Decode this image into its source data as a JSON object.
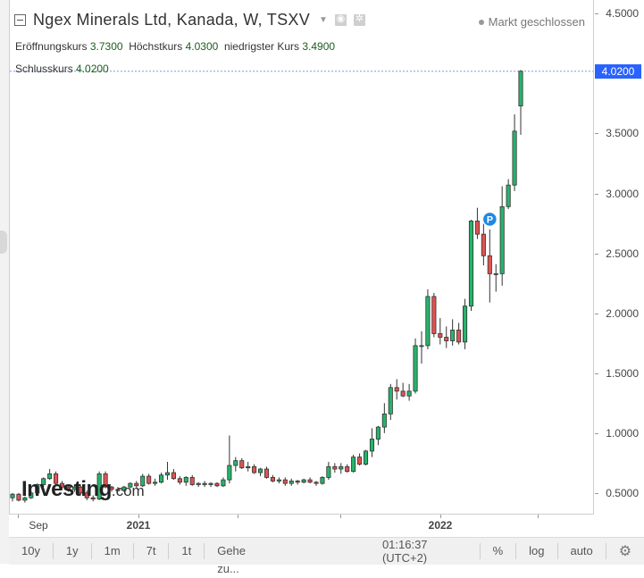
{
  "header": {
    "title": "Ngex Minerals Ltd, Kanada, W, TSXV",
    "market_status": "Markt geschlossen"
  },
  "ohlc": {
    "open_label": "Eröffnungskurs",
    "open_value": "3.7300",
    "high_label": "Höchstkurs",
    "high_value": "4.0300",
    "low_label": "niedrigster Kurs",
    "low_value": "3.4900",
    "close_label": "Schlusskurs",
    "close_value": "4.0200"
  },
  "current_price_tag": "4.0200",
  "logo": {
    "main": "Investing",
    "suffix": ".com"
  },
  "marker_label": "P",
  "toolbar": {
    "periods": [
      "10y",
      "1y",
      "1m",
      "7t",
      "1t"
    ],
    "goto": "Gehe zu...",
    "time": "01:16:37",
    "timezone": "(UTC+2)",
    "percent": "%",
    "log": "log",
    "auto": "auto"
  },
  "colors": {
    "up": "#26b36b",
    "down": "#e05252",
    "accent": "#2962ff"
  },
  "chart_data": {
    "type": "candlestick",
    "title": "Ngex Minerals Ltd, Kanada, W, TSXV",
    "x_tick_labels": [
      "Sep",
      "2021",
      "2022"
    ],
    "y_ticks": [
      0.5,
      1.0,
      1.5,
      2.0,
      2.5,
      3.0,
      3.5,
      4.0,
      4.5
    ],
    "ylim": [
      0.32,
      4.54
    ],
    "grid": false,
    "candles": [
      {
        "o": 0.46,
        "h": 0.5,
        "l": 0.43,
        "c": 0.49
      },
      {
        "o": 0.49,
        "h": 0.5,
        "l": 0.43,
        "c": 0.44
      },
      {
        "o": 0.44,
        "h": 0.47,
        "l": 0.42,
        "c": 0.46
      },
      {
        "o": 0.46,
        "h": 0.52,
        "l": 0.45,
        "c": 0.5
      },
      {
        "o": 0.5,
        "h": 0.58,
        "l": 0.49,
        "c": 0.57
      },
      {
        "o": 0.57,
        "h": 0.63,
        "l": 0.55,
        "c": 0.62
      },
      {
        "o": 0.62,
        "h": 0.7,
        "l": 0.61,
        "c": 0.66
      },
      {
        "o": 0.66,
        "h": 0.68,
        "l": 0.57,
        "c": 0.58
      },
      {
        "o": 0.58,
        "h": 0.6,
        "l": 0.53,
        "c": 0.55
      },
      {
        "o": 0.55,
        "h": 0.57,
        "l": 0.51,
        "c": 0.53
      },
      {
        "o": 0.53,
        "h": 0.57,
        "l": 0.51,
        "c": 0.55
      },
      {
        "o": 0.55,
        "h": 0.56,
        "l": 0.49,
        "c": 0.5
      },
      {
        "o": 0.5,
        "h": 0.52,
        "l": 0.44,
        "c": 0.46
      },
      {
        "o": 0.46,
        "h": 0.48,
        "l": 0.43,
        "c": 0.45
      },
      {
        "o": 0.45,
        "h": 0.68,
        "l": 0.44,
        "c": 0.66
      },
      {
        "o": 0.66,
        "h": 0.68,
        "l": 0.54,
        "c": 0.55
      },
      {
        "o": 0.55,
        "h": 0.56,
        "l": 0.51,
        "c": 0.53
      },
      {
        "o": 0.53,
        "h": 0.55,
        "l": 0.51,
        "c": 0.52
      },
      {
        "o": 0.52,
        "h": 0.56,
        "l": 0.51,
        "c": 0.55
      },
      {
        "o": 0.55,
        "h": 0.59,
        "l": 0.54,
        "c": 0.58
      },
      {
        "o": 0.58,
        "h": 0.6,
        "l": 0.54,
        "c": 0.56
      },
      {
        "o": 0.56,
        "h": 0.66,
        "l": 0.55,
        "c": 0.64
      },
      {
        "o": 0.64,
        "h": 0.66,
        "l": 0.57,
        "c": 0.58
      },
      {
        "o": 0.58,
        "h": 0.62,
        "l": 0.56,
        "c": 0.59
      },
      {
        "o": 0.59,
        "h": 0.67,
        "l": 0.58,
        "c": 0.65
      },
      {
        "o": 0.65,
        "h": 0.76,
        "l": 0.61,
        "c": 0.67
      },
      {
        "o": 0.67,
        "h": 0.7,
        "l": 0.61,
        "c": 0.62
      },
      {
        "o": 0.62,
        "h": 0.64,
        "l": 0.57,
        "c": 0.59
      },
      {
        "o": 0.59,
        "h": 0.64,
        "l": 0.56,
        "c": 0.63
      },
      {
        "o": 0.63,
        "h": 0.65,
        "l": 0.56,
        "c": 0.57
      },
      {
        "o": 0.57,
        "h": 0.59,
        "l": 0.55,
        "c": 0.58
      },
      {
        "o": 0.58,
        "h": 0.6,
        "l": 0.55,
        "c": 0.57
      },
      {
        "o": 0.57,
        "h": 0.59,
        "l": 0.55,
        "c": 0.58
      },
      {
        "o": 0.58,
        "h": 0.59,
        "l": 0.55,
        "c": 0.56
      },
      {
        "o": 0.56,
        "h": 0.63,
        "l": 0.55,
        "c": 0.61
      },
      {
        "o": 0.61,
        "h": 0.98,
        "l": 0.58,
        "c": 0.73
      },
      {
        "o": 0.73,
        "h": 0.8,
        "l": 0.68,
        "c": 0.77
      },
      {
        "o": 0.77,
        "h": 0.79,
        "l": 0.7,
        "c": 0.71
      },
      {
        "o": 0.71,
        "h": 0.76,
        "l": 0.68,
        "c": 0.72
      },
      {
        "o": 0.72,
        "h": 0.74,
        "l": 0.66,
        "c": 0.67
      },
      {
        "o": 0.67,
        "h": 0.71,
        "l": 0.64,
        "c": 0.7
      },
      {
        "o": 0.7,
        "h": 0.72,
        "l": 0.62,
        "c": 0.63
      },
      {
        "o": 0.63,
        "h": 0.65,
        "l": 0.59,
        "c": 0.6
      },
      {
        "o": 0.6,
        "h": 0.63,
        "l": 0.58,
        "c": 0.61
      },
      {
        "o": 0.61,
        "h": 0.63,
        "l": 0.56,
        "c": 0.58
      },
      {
        "o": 0.58,
        "h": 0.62,
        "l": 0.56,
        "c": 0.6
      },
      {
        "o": 0.6,
        "h": 0.61,
        "l": 0.57,
        "c": 0.59
      },
      {
        "o": 0.59,
        "h": 0.62,
        "l": 0.58,
        "c": 0.61
      },
      {
        "o": 0.61,
        "h": 0.63,
        "l": 0.58,
        "c": 0.59
      },
      {
        "o": 0.59,
        "h": 0.6,
        "l": 0.56,
        "c": 0.58
      },
      {
        "o": 0.58,
        "h": 0.64,
        "l": 0.57,
        "c": 0.63
      },
      {
        "o": 0.63,
        "h": 0.76,
        "l": 0.61,
        "c": 0.72
      },
      {
        "o": 0.72,
        "h": 0.75,
        "l": 0.67,
        "c": 0.7
      },
      {
        "o": 0.7,
        "h": 0.75,
        "l": 0.66,
        "c": 0.72
      },
      {
        "o": 0.72,
        "h": 0.74,
        "l": 0.67,
        "c": 0.68
      },
      {
        "o": 0.68,
        "h": 0.82,
        "l": 0.67,
        "c": 0.8
      },
      {
        "o": 0.8,
        "h": 0.83,
        "l": 0.73,
        "c": 0.74
      },
      {
        "o": 0.74,
        "h": 0.86,
        "l": 0.73,
        "c": 0.85
      },
      {
        "o": 0.85,
        "h": 1.04,
        "l": 0.8,
        "c": 0.95
      },
      {
        "o": 0.95,
        "h": 1.06,
        "l": 0.9,
        "c": 1.05
      },
      {
        "o": 1.05,
        "h": 1.25,
        "l": 1.0,
        "c": 1.16
      },
      {
        "o": 1.16,
        "h": 1.41,
        "l": 1.11,
        "c": 1.38
      },
      {
        "o": 1.38,
        "h": 1.45,
        "l": 1.28,
        "c": 1.35
      },
      {
        "o": 1.35,
        "h": 1.42,
        "l": 1.3,
        "c": 1.31
      },
      {
        "o": 1.31,
        "h": 1.41,
        "l": 1.27,
        "c": 1.35
      },
      {
        "o": 1.35,
        "h": 1.79,
        "l": 1.33,
        "c": 1.73
      },
      {
        "o": 1.73,
        "h": 1.85,
        "l": 1.58,
        "c": 1.73
      },
      {
        "o": 1.73,
        "h": 2.2,
        "l": 1.7,
        "c": 2.14
      },
      {
        "o": 2.14,
        "h": 2.17,
        "l": 1.8,
        "c": 1.83
      },
      {
        "o": 1.83,
        "h": 1.96,
        "l": 1.74,
        "c": 1.8
      },
      {
        "o": 1.8,
        "h": 1.89,
        "l": 1.71,
        "c": 1.77
      },
      {
        "o": 1.77,
        "h": 1.95,
        "l": 1.73,
        "c": 1.86
      },
      {
        "o": 1.86,
        "h": 1.92,
        "l": 1.74,
        "c": 1.76
      },
      {
        "o": 1.76,
        "h": 2.12,
        "l": 1.7,
        "c": 2.06
      },
      {
        "o": 2.06,
        "h": 2.78,
        "l": 2.02,
        "c": 2.77
      },
      {
        "o": 2.77,
        "h": 2.88,
        "l": 2.62,
        "c": 2.66
      },
      {
        "o": 2.66,
        "h": 2.79,
        "l": 2.4,
        "c": 2.48
      },
      {
        "o": 2.48,
        "h": 2.7,
        "l": 2.09,
        "c": 2.33
      },
      {
        "o": 2.33,
        "h": 2.41,
        "l": 2.18,
        "c": 2.33
      },
      {
        "o": 2.33,
        "h": 3.06,
        "l": 2.23,
        "c": 2.89
      },
      {
        "o": 2.89,
        "h": 3.12,
        "l": 2.87,
        "c": 3.07
      },
      {
        "o": 3.07,
        "h": 3.66,
        "l": 3.02,
        "c": 3.52
      },
      {
        "o": 3.73,
        "h": 4.03,
        "l": 3.49,
        "c": 4.02
      }
    ],
    "markers": [
      {
        "label": "P",
        "price": 2.77
      }
    ]
  }
}
